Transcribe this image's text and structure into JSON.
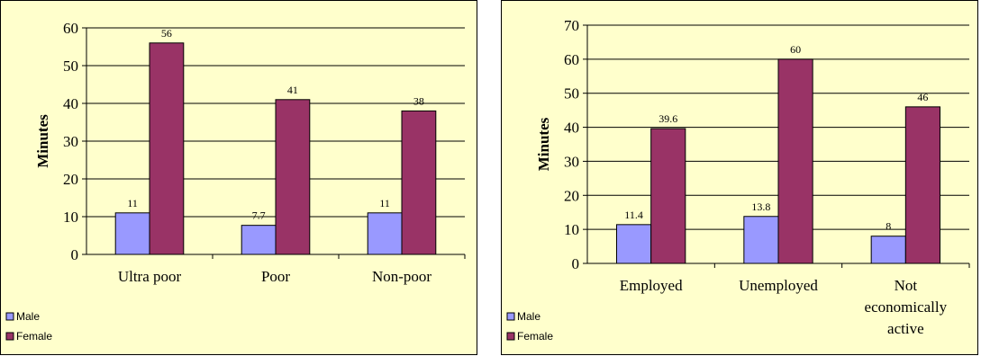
{
  "colors": {
    "male": "#9999FF",
    "female": "#993366",
    "panel_bg": "#FFFFCC",
    "outline": "#000000"
  },
  "chart_data": [
    {
      "type": "bar",
      "categories": [
        [
          "Ultra poor"
        ],
        [
          "Poor"
        ],
        [
          "Non-poor"
        ]
      ],
      "series": [
        {
          "name": "Male",
          "values": [
            11,
            7.7,
            11
          ],
          "labels": [
            "11",
            "7.7",
            "11"
          ]
        },
        {
          "name": "Female",
          "values": [
            56,
            41,
            38
          ],
          "labels": [
            "56",
            "41",
            "38"
          ]
        }
      ],
      "ylabel": "Minutes",
      "ylim": [
        0,
        60
      ],
      "yticks": [
        0,
        10,
        20,
        30,
        40,
        50,
        60
      ],
      "grid": true,
      "legend": "bottom-left"
    },
    {
      "type": "bar",
      "categories": [
        [
          "Employed"
        ],
        [
          "Unemployed"
        ],
        [
          "Not",
          "economically",
          "active"
        ]
      ],
      "series": [
        {
          "name": "Male",
          "values": [
            11.4,
            13.8,
            8
          ],
          "labels": [
            "11.4",
            "13.8",
            "8"
          ]
        },
        {
          "name": "Female",
          "values": [
            39.6,
            60,
            46
          ],
          "labels": [
            "39.6",
            "60",
            "46"
          ]
        }
      ],
      "ylabel": "Minutes",
      "ylim": [
        0,
        70
      ],
      "yticks": [
        0,
        10,
        20,
        30,
        40,
        50,
        60,
        70
      ],
      "grid": true,
      "legend": "bottom-left"
    }
  ]
}
